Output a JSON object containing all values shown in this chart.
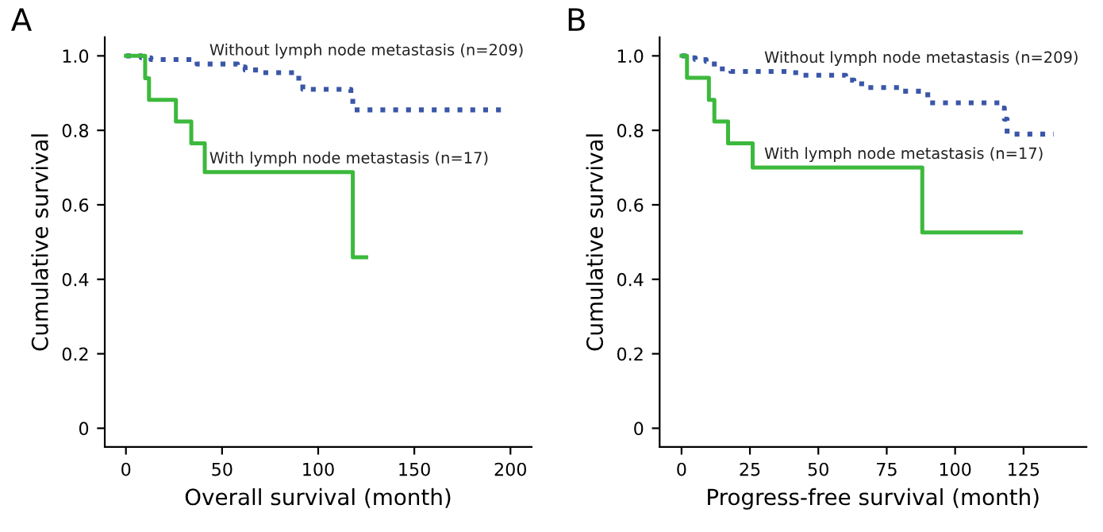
{
  "chart_data": [
    {
      "type": "step",
      "title": "A",
      "xlabel": "Overall survival (month)",
      "ylabel": "Cumulative survival",
      "xlim": [
        -11,
        211
      ],
      "ylim": [
        -0.05,
        1.05
      ],
      "xticks": [
        0,
        50,
        100,
        150,
        200
      ],
      "yticks": [
        0,
        {
          "value": 0.2,
          "label": "0.2"
        },
        {
          "value": 0.4,
          "label": "0.4"
        },
        {
          "value": 0.6,
          "label": "0.6"
        },
        {
          "value": 0.8,
          "label": "0.8"
        },
        {
          "value": 1,
          "label": "1.0"
        }
      ],
      "grid": false,
      "series": [
        {
          "name": "Without lymph node metastasis (n=209)",
          "color": "#3a56a8",
          "line_style": "dotted",
          "x": [
            0,
            8,
            13,
            37,
            58,
            60,
            62,
            70,
            88,
            92,
            117,
            118,
            198
          ],
          "values": [
            1,
            0.995,
            0.99,
            0.978,
            0.975,
            0.97,
            0.962,
            0.955,
            0.94,
            0.91,
            0.89,
            0.855,
            0.855
          ]
        },
        {
          "name": "With lymph node metastasis (n=17)",
          "color": "#3cb93c",
          "line_style": "solid",
          "x": [
            0,
            10,
            12,
            26,
            34,
            41,
            118,
            125
          ],
          "values": [
            1,
            0.94,
            0.882,
            0.824,
            0.765,
            0.688,
            0.459,
            0.459
          ]
        }
      ]
    },
    {
      "type": "step",
      "title": "B",
      "xlabel": "Progress-free survival (month)",
      "ylabel": "Cumulative survival",
      "xlim": [
        -8,
        148
      ],
      "ylim": [
        -0.05,
        1.05
      ],
      "xticks": [
        0,
        25,
        50,
        75,
        100,
        125
      ],
      "yticks": [
        0,
        {
          "value": 0.2,
          "label": "0.2"
        },
        {
          "value": 0.4,
          "label": "0.4"
        },
        {
          "value": 0.6,
          "label": "0.6"
        },
        {
          "value": 0.8,
          "label": "0.8"
        },
        {
          "value": 1,
          "label": "1.0"
        }
      ],
      "grid": false,
      "series": [
        {
          "name": "Without lymph node metastasis (n=209)",
          "color": "#3a56a8",
          "line_style": "dotted",
          "x": [
            0,
            2,
            5,
            9,
            12,
            18,
            40,
            44,
            60,
            63,
            68,
            80,
            90,
            117,
            118,
            119,
            136
          ],
          "values": [
            1,
            0.995,
            0.99,
            0.985,
            0.965,
            0.958,
            0.955,
            0.948,
            0.935,
            0.925,
            0.915,
            0.905,
            0.874,
            0.86,
            0.83,
            0.79,
            0.79
          ]
        },
        {
          "name": "With lymph node metastasis (n=17)",
          "color": "#3cb93c",
          "line_style": "solid",
          "x": [
            0,
            2,
            10,
            12,
            17,
            26,
            88,
            124
          ],
          "values": [
            1,
            0.941,
            0.882,
            0.824,
            0.765,
            0.7,
            0.526,
            0.526
          ]
        }
      ]
    }
  ]
}
